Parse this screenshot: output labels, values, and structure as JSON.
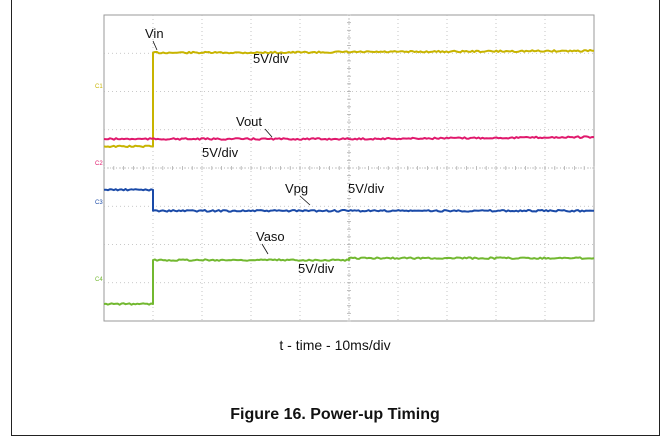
{
  "chart_data": {
    "type": "line",
    "title": "Figure 16. Power-up Timing",
    "xlabel": "t - time - 10ms/div",
    "ylabel": "",
    "x_unit": "ms",
    "x_per_div": 10,
    "x_divisions": 10,
    "y_divisions": 8,
    "xlim": [
      -10,
      90
    ],
    "grid": true,
    "series": [
      {
        "name": "Vin",
        "scale_label": "5V/div",
        "channel": "C1",
        "color": "#c8b400",
        "x": [
          -10,
          0,
          0,
          20,
          90
        ],
        "level_div": [
          -1.5,
          -1.5,
          0.95,
          0.95,
          1.0
        ]
      },
      {
        "name": "Vout",
        "scale_label": "5V/div",
        "channel": "C2",
        "color": "#e0186c",
        "x": [
          -10,
          40,
          90
        ],
        "level_div": [
          0.0,
          0.0,
          0.05
        ]
      },
      {
        "name": "Vpg",
        "scale_label": "5V/div",
        "channel": "C3",
        "color": "#1a4aa8",
        "x": [
          -10,
          0,
          0,
          90
        ],
        "level_div": [
          0.45,
          0.45,
          -0.1,
          -0.1
        ]
      },
      {
        "name": "Vaso",
        "scale_label": "5V/div",
        "channel": "C4",
        "color": "#72b830",
        "x": [
          -10,
          0,
          0,
          40,
          40,
          90
        ],
        "level_div": [
          -0.55,
          -0.55,
          0.6,
          0.6,
          0.65,
          0.65
        ]
      }
    ]
  }
}
